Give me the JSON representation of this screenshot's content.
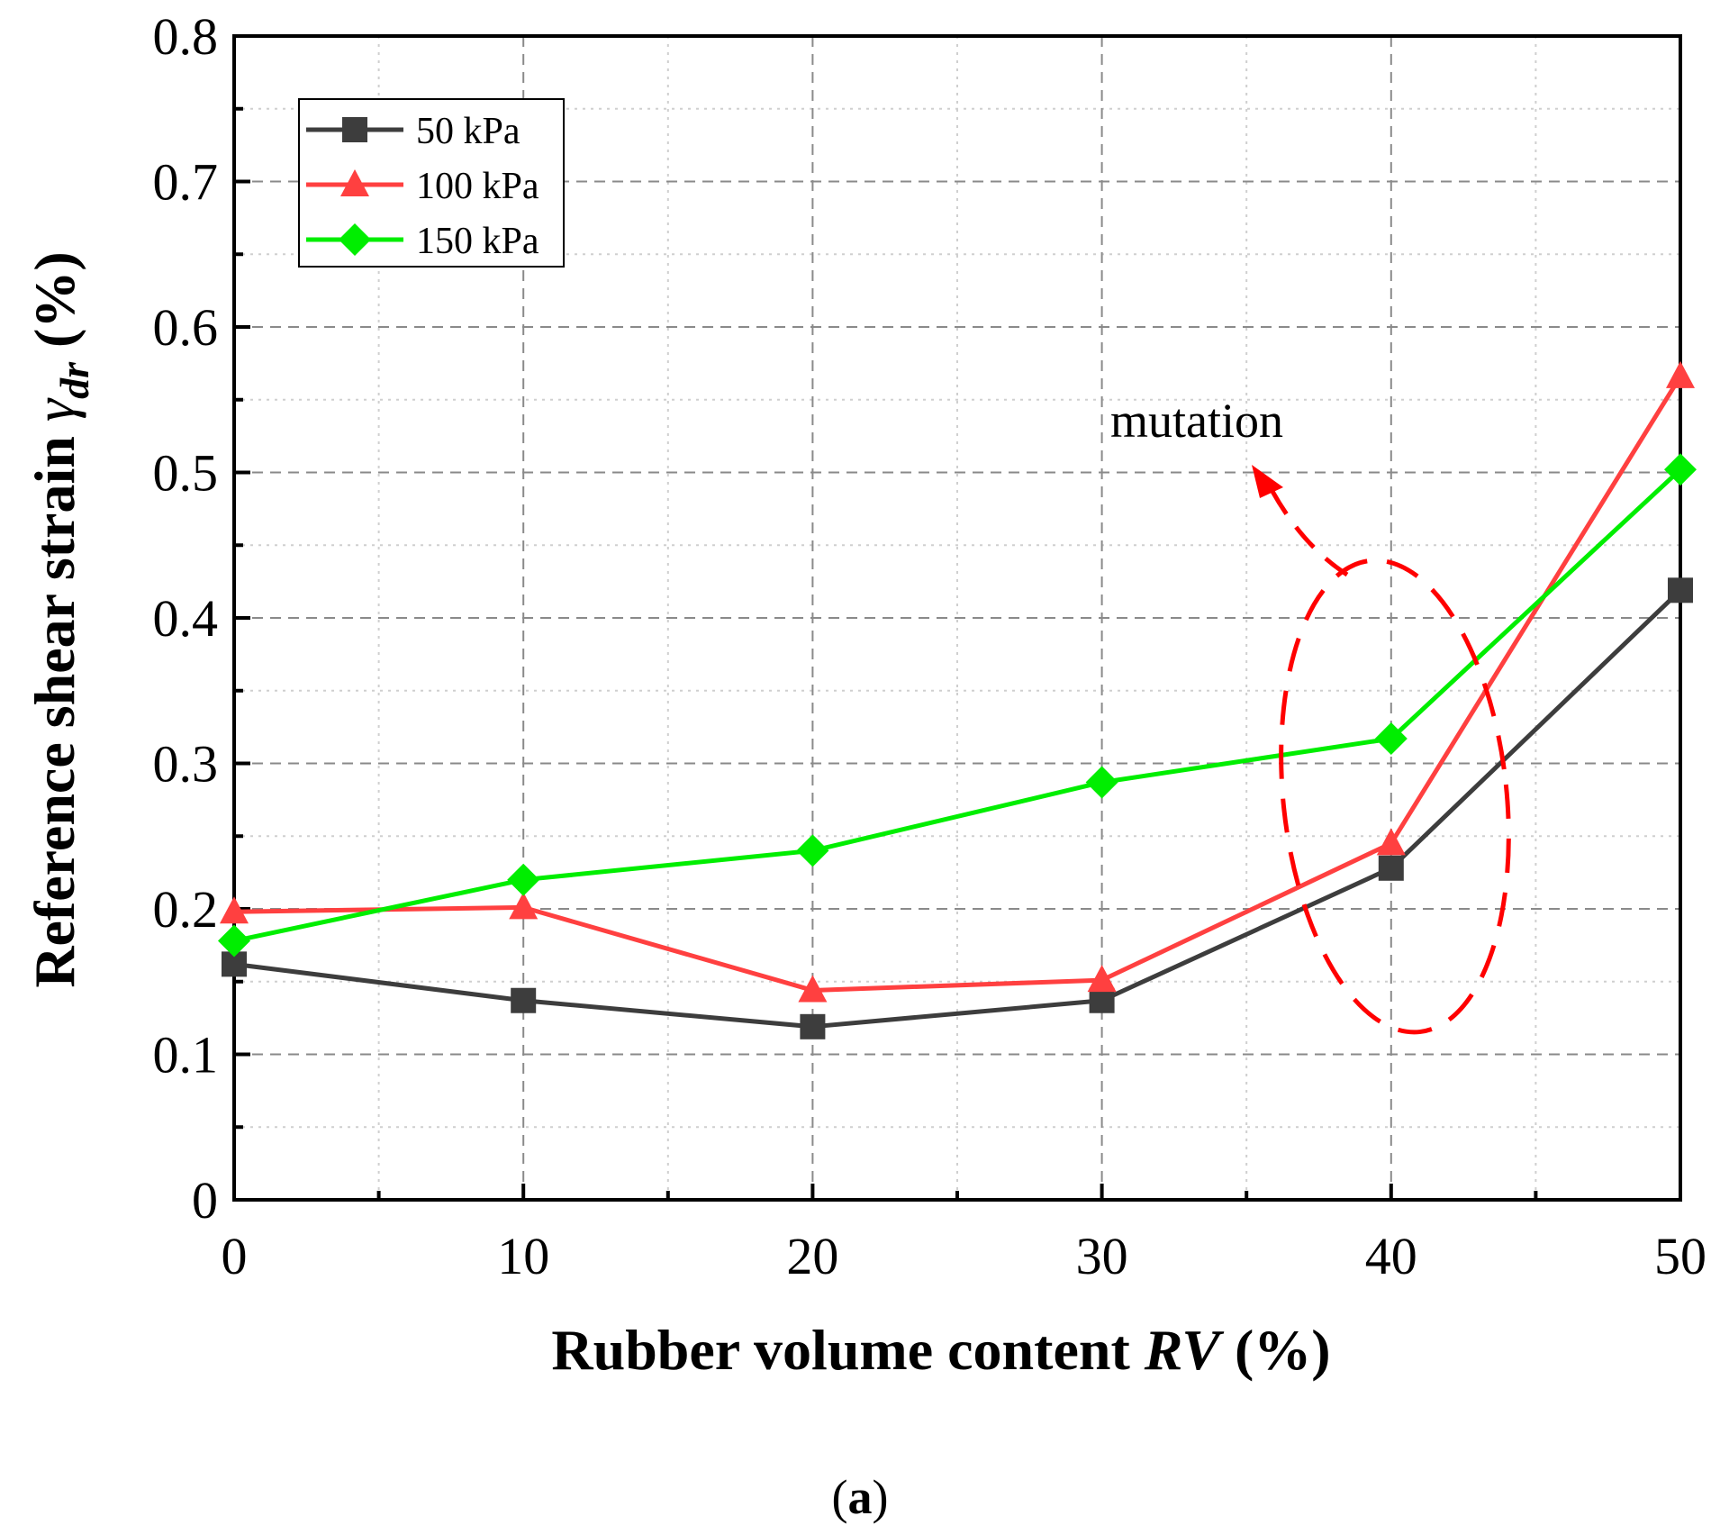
{
  "chart_data": {
    "type": "line",
    "title": "",
    "xlabel": "Rubber volume content",
    "xlabel_var": "RV",
    "xlabel_unit": "(%)",
    "ylabel": "Reference shear strain",
    "ylabel_symbol": "γ",
    "ylabel_subscript": "dr",
    "ylabel_unit": "(%)",
    "x": [
      0,
      10,
      20,
      30,
      40,
      50
    ],
    "xlim": [
      0,
      50
    ],
    "ylim": [
      0,
      0.8
    ],
    "xticks": [
      "0",
      "10",
      "20",
      "30",
      "40",
      "50"
    ],
    "yticks": [
      "0",
      "0.1",
      "0.2",
      "0.3",
      "0.4",
      "0.5",
      "0.6",
      "0.7",
      "0.8"
    ],
    "grid": true,
    "legend_position": "top-left",
    "series": [
      {
        "name": "50 kPa",
        "marker": "square",
        "color": "#3d3d3d",
        "values": [
          0.162,
          0.137,
          0.119,
          0.137,
          0.228,
          0.419
        ]
      },
      {
        "name": "100 kPa",
        "marker": "triangle",
        "color": "#ff4040",
        "values": [
          0.198,
          0.201,
          0.144,
          0.151,
          0.245,
          0.566
        ]
      },
      {
        "name": "150 kPa",
        "marker": "diamond",
        "color": "#00ee00",
        "values": [
          0.178,
          0.22,
          0.24,
          0.287,
          0.317,
          0.502
        ]
      }
    ],
    "annotations": [
      {
        "text": "mutation",
        "color": "#ff0000"
      }
    ],
    "panel_label": {
      "open": "(",
      "letter": "a",
      "close": ")"
    }
  }
}
